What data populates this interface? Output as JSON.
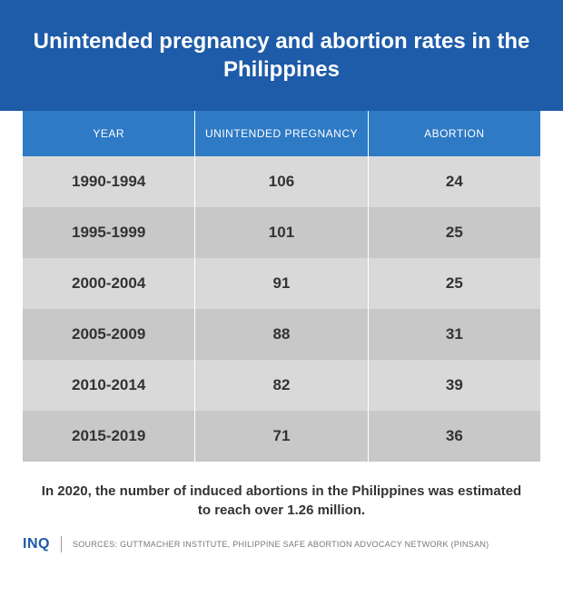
{
  "title": "Unintended pregnancy and abortion rates in the Philippines",
  "table": {
    "columns": [
      "YEAR",
      "UNINTENDED PREGNANCY",
      "ABORTION"
    ],
    "rows": [
      [
        "1990-1994",
        "106",
        "24"
      ],
      [
        "1995-1999",
        "101",
        "25"
      ],
      [
        "2000-2004",
        "91",
        "25"
      ],
      [
        "2005-2009",
        "88",
        "31"
      ],
      [
        "2010-2014",
        "82",
        "39"
      ],
      [
        "2015-2019",
        "71",
        "36"
      ]
    ],
    "header_bg": "#2e7ac4",
    "row_colors": [
      "#d9d9d9",
      "#c8c8c8"
    ],
    "header_text_color": "#ffffff",
    "cell_text_color": "#333333",
    "cell_font_weight": "bold",
    "header_font_size": 12,
    "cell_font_size": 17
  },
  "caption": "In 2020, the number of induced abortions in the Philippines was estimated to reach over 1.26 million.",
  "logo": "INQ",
  "sources": "SOURCES: GUTTMACHER INSTITUTE, PHILIPPINE SAFE ABORTION ADVOCACY NETWORK (PINSAN)",
  "colors": {
    "title_bg": "#1e5ba8",
    "title_text": "#ffffff",
    "logo_color": "#1e5ba8",
    "sources_color": "#777777",
    "background": "#ffffff"
  },
  "title_font_size": 24,
  "caption_font_size": 15,
  "logo_font_size": 16,
  "sources_font_size": 9
}
